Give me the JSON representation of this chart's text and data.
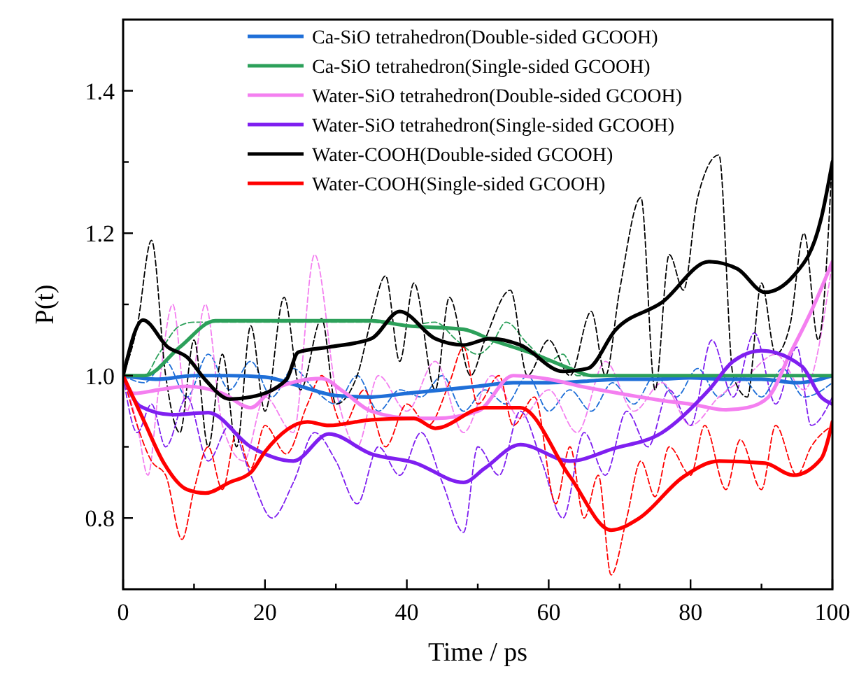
{
  "chart_data": {
    "type": "line",
    "xlabel": "Time / ps",
    "ylabel": "P(t)",
    "xlim": [
      0,
      100
    ],
    "ylim": [
      0.7,
      1.5
    ],
    "xticks": [
      0,
      {
        "value": 10,
        "label": null
      },
      20,
      {
        "value": 30,
        "label": null
      },
      40,
      {
        "value": 50,
        "label": null
      },
      60,
      {
        "value": 70,
        "label": null
      },
      80,
      {
        "value": 90,
        "label": null
      },
      100
    ],
    "yticks": [
      0.8,
      {
        "value": 0.9,
        "label": null
      },
      {
        "value": 1,
        "label": "1.0"
      },
      {
        "value": 1.1,
        "label": null
      },
      1.2,
      {
        "value": 1.3,
        "label": null
      },
      1.4
    ],
    "grid": false,
    "legend": "top right",
    "marker": "none",
    "series": [
      {
        "color": "#1f6fd8",
        "line_style": "dashed",
        "x": [
          0,
          3,
          6,
          9,
          12,
          15,
          18,
          21,
          24,
          27,
          30,
          33,
          36,
          39,
          42,
          45,
          48,
          51,
          54,
          57,
          60,
          63,
          66,
          69,
          72,
          75,
          78,
          81,
          84,
          87,
          90,
          93,
          96,
          100
        ],
        "values": [
          1.0,
          0.99,
          1.02,
          0.97,
          1.03,
          0.98,
          1.02,
          0.97,
          1.01,
          0.98,
          0.96,
          1.0,
          0.95,
          0.98,
          0.97,
          1.0,
          0.95,
          0.98,
          0.96,
          1.0,
          0.95,
          0.98,
          0.95,
          0.99,
          0.96,
          1.0,
          0.97,
          1.01,
          0.97,
          1.0,
          0.97,
          1.01,
          0.97,
          0.99
        ]
      },
      {
        "color": "#2ca05a",
        "line_style": "dashed",
        "x": [
          0,
          3,
          5,
          8,
          10,
          35,
          40,
          44,
          47,
          50,
          52,
          54,
          57,
          60,
          62,
          64,
          100
        ],
        "values": [
          1.0,
          1.0,
          1.03,
          1.07,
          1.075,
          1.075,
          1.07,
          1.075,
          1.05,
          1.03,
          1.045,
          1.075,
          1.045,
          1.02,
          1.03,
          1.0,
          1.0
        ]
      },
      {
        "color": "#f47ff0",
        "line_style": "dashed",
        "x": [
          0,
          2,
          3.5,
          5,
          7,
          9,
          11.6,
          14,
          17,
          20,
          24,
          27,
          30,
          33,
          36,
          40,
          44,
          48,
          52,
          56,
          60,
          64,
          68,
          72,
          76,
          80,
          84,
          88,
          92,
          96,
          100
        ],
        "values": [
          1.0,
          0.93,
          0.86,
          0.98,
          1.1,
          0.95,
          1.1,
          0.93,
          0.88,
          0.97,
          0.92,
          1.17,
          0.98,
          0.9,
          1.0,
          0.95,
          1.02,
          0.92,
          1.0,
          0.94,
          0.98,
          0.92,
          1.02,
          0.95,
          0.99,
          0.93,
          0.97,
          1.0,
          1.03,
          0.98,
          1.16
        ]
      },
      {
        "color": "#7f1ff0",
        "line_style": "dashed",
        "x": [
          0,
          2,
          4,
          6,
          9,
          12,
          15,
          18,
          21,
          24,
          27,
          30,
          33,
          36,
          39,
          42,
          45,
          48,
          50,
          53,
          56,
          59,
          62,
          65,
          68,
          71,
          74,
          77,
          80,
          83,
          86,
          89,
          92,
          95,
          97,
          100
        ],
        "values": [
          1.0,
          0.92,
          0.96,
          0.9,
          0.97,
          0.88,
          0.93,
          0.86,
          0.8,
          0.85,
          0.92,
          0.88,
          0.82,
          0.9,
          0.86,
          0.92,
          0.85,
          0.78,
          0.9,
          0.86,
          0.95,
          0.88,
          0.8,
          0.92,
          0.86,
          0.95,
          0.9,
          0.98,
          0.93,
          1.05,
          0.97,
          1.06,
          0.96,
          1.04,
          0.93,
          0.97
        ]
      },
      {
        "color": "#000000",
        "line_style": "dashed",
        "x": [
          0,
          2,
          4,
          6,
          8,
          10,
          12,
          14,
          16,
          18,
          20,
          22.7,
          25,
          28,
          30,
          33,
          35,
          37,
          39,
          41,
          44,
          46,
          49,
          51,
          54.6,
          57,
          60,
          63,
          66,
          68,
          70,
          73,
          75,
          77,
          79,
          81,
          84,
          86,
          88,
          90,
          92,
          94,
          96,
          98,
          100
        ],
        "values": [
          1.0,
          1.07,
          1.19,
          1.0,
          0.92,
          1.05,
          0.9,
          1.03,
          0.9,
          1.07,
          0.95,
          1.11,
          0.98,
          1.08,
          0.96,
          1.0,
          1.08,
          1.14,
          1.02,
          1.13,
          0.98,
          1.11,
          1.0,
          1.05,
          1.12,
          1.0,
          1.05,
          1.0,
          1.09,
          1.0,
          1.12,
          1.25,
          0.98,
          1.17,
          1.12,
          1.25,
          1.31,
          1.0,
          0.97,
          1.13,
          1.03,
          1.07,
          1.2,
          1.05,
          1.31
        ]
      },
      {
        "color": "#ff0000",
        "line_style": "dashed",
        "x": [
          0,
          2,
          4,
          6,
          8.3,
          10,
          12,
          14,
          16,
          18,
          20,
          23,
          26,
          28,
          31,
          34,
          37,
          40,
          43,
          46,
          48,
          50,
          53,
          55,
          58,
          61,
          63,
          65,
          67,
          68.8,
          71,
          73,
          75,
          77,
          80,
          82,
          85,
          87,
          90,
          92,
          95,
          97,
          100
        ],
        "values": [
          1.0,
          0.93,
          0.88,
          0.86,
          0.77,
          0.84,
          0.9,
          0.84,
          0.92,
          0.87,
          0.93,
          0.89,
          0.96,
          1.0,
          0.93,
          0.98,
          0.9,
          0.96,
          0.93,
          0.99,
          1.04,
          0.96,
          1.0,
          0.93,
          0.97,
          0.82,
          0.9,
          0.8,
          0.86,
          0.72,
          0.8,
          0.88,
          0.83,
          0.9,
          0.86,
          0.93,
          0.84,
          0.91,
          0.84,
          0.93,
          0.86,
          0.9,
          0.93
        ]
      },
      {
        "name": "Ca-SiO tetrahedron(Double-sided GCOOH)",
        "color": "#1f6fd8",
        "line_style": "solid",
        "x": [
          0,
          5,
          10,
          15,
          20,
          25,
          30,
          35,
          40,
          45,
          50,
          55,
          60,
          65,
          70,
          75,
          80,
          85,
          90,
          95,
          100
        ],
        "values": [
          1.0,
          0.995,
          1.0,
          1.0,
          0.998,
          0.985,
          0.972,
          0.97,
          0.975,
          0.98,
          0.985,
          0.99,
          0.99,
          0.992,
          0.995,
          0.995,
          0.997,
          0.995,
          0.995,
          0.99,
          1.0
        ]
      },
      {
        "name": "Ca-SiO tetrahedron(Single-sided GCOOH)",
        "color": "#2ca05a",
        "line_style": "solid",
        "x": [
          0,
          3,
          8,
          13,
          35,
          40,
          48,
          52,
          58,
          63,
          66,
          100
        ],
        "values": [
          1.0,
          1.0,
          1.04,
          1.077,
          1.077,
          1.07,
          1.065,
          1.05,
          1.03,
          1.01,
          1.0,
          1.0
        ]
      },
      {
        "name": "Water-SiO tetrahedron(Double-sided GCOOH)",
        "color": "#f47ff0",
        "line_style": "solid",
        "x": [
          0,
          1.5,
          5,
          9,
          14,
          18,
          21,
          28,
          31,
          35,
          41,
          44,
          50,
          55,
          60,
          65,
          70,
          76,
          80,
          85,
          88,
          91,
          94,
          97,
          100
        ],
        "values": [
          1.0,
          0.975,
          0.98,
          0.985,
          0.975,
          0.955,
          0.98,
          0.996,
          0.978,
          0.95,
          0.94,
          0.94,
          0.95,
          1.0,
          0.995,
          0.984,
          0.975,
          0.965,
          0.96,
          0.952,
          0.955,
          0.97,
          1.03,
          1.09,
          1.16
        ]
      },
      {
        "name": "Water-SiO tetrahedron(Single-sided GCOOH)",
        "color": "#7f1ff0",
        "line_style": "solid",
        "x": [
          0,
          2.4,
          7,
          12,
          18,
          24,
          29,
          35,
          41,
          48,
          51,
          56,
          63,
          69,
          76,
          82.6,
          86,
          90,
          95.7,
          98.4,
          100
        ],
        "values": [
          1.0,
          0.957,
          0.945,
          0.948,
          0.9,
          0.88,
          0.918,
          0.89,
          0.878,
          0.85,
          0.87,
          0.903,
          0.88,
          0.897,
          0.92,
          0.98,
          1.02,
          1.035,
          1.013,
          0.97,
          0.96
        ]
      },
      {
        "name": "Water-COOH(Double-sided GCOOH)",
        "color": "#000000",
        "line_style": "solid",
        "x": [
          0,
          2.8,
          6.3,
          9,
          11.6,
          15,
          18,
          23,
          24.7,
          29,
          35,
          39,
          44,
          48,
          51.7,
          56,
          62,
          65.5,
          69.4,
          76,
          82.6,
          86.6,
          90.5,
          94.5,
          98.4,
          100
        ],
        "values": [
          1.0,
          1.078,
          1.04,
          1.026,
          0.994,
          0.967,
          0.97,
          0.994,
          1.033,
          1.04,
          1.052,
          1.09,
          1.052,
          1.043,
          1.052,
          1.043,
          1.006,
          1.01,
          1.064,
          1.103,
          1.16,
          1.15,
          1.117,
          1.14,
          1.22,
          1.3
        ]
      },
      {
        "name": "Water-COOH(Single-sided GCOOH)",
        "color": "#ff0000",
        "line_style": "solid",
        "x": [
          0,
          3,
          5.7,
          9,
          11.6,
          15,
          18,
          20,
          26,
          29,
          35,
          41,
          44,
          51,
          56,
          63,
          68.8,
          72.8,
          79,
          84,
          90.5,
          94.5,
          98.4,
          100
        ],
        "values": [
          1.0,
          0.935,
          0.878,
          0.84,
          0.835,
          0.85,
          0.864,
          0.893,
          0.935,
          0.93,
          0.938,
          0.94,
          0.926,
          0.955,
          0.955,
          0.858,
          0.783,
          0.8,
          0.858,
          0.88,
          0.877,
          0.86,
          0.883,
          0.935
        ]
      }
    ]
  }
}
